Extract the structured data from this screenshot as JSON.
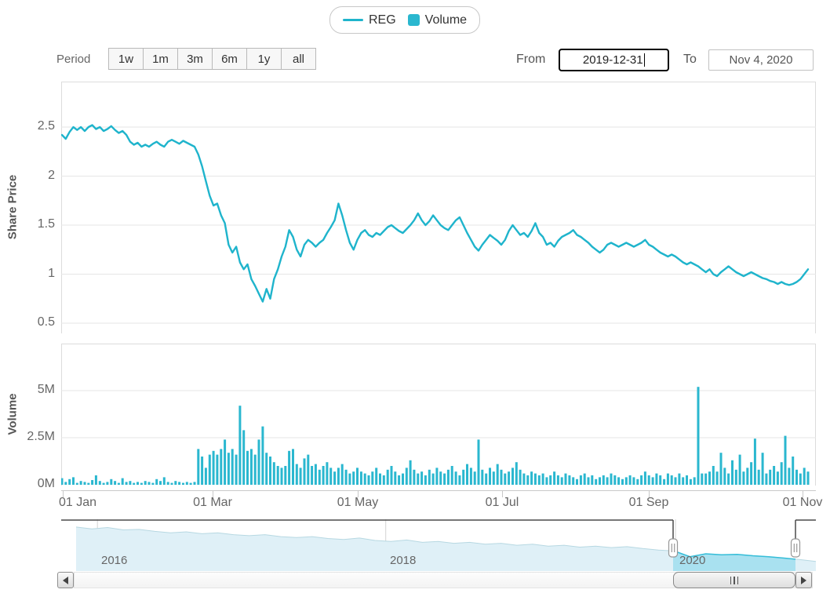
{
  "legend": {
    "items": [
      {
        "label": "REG",
        "marker": "line-icon"
      },
      {
        "label": "Volume",
        "marker": "square-icon"
      }
    ]
  },
  "toolbar": {
    "period_label": "Period",
    "buttons": [
      "1w",
      "1m",
      "3m",
      "6m",
      "1y",
      "all"
    ],
    "from_label": "From",
    "from_value": "2019-12-31",
    "to_label": "To",
    "to_value": "Nov 4, 2020"
  },
  "colors": {
    "series_line": "#1fb4cc",
    "volume_bar": "#2ab7cf",
    "grid": "#e6e6e6",
    "plot_border": "#dcdcdc",
    "axis_text": "#666666",
    "nav_area_fill": "#dff0f7",
    "nav_area_line": "#b7d8e2",
    "nav_selected_fill": "#a9e1f0",
    "nav_selected_line": "#35bdd8",
    "nav_outline": "#4a4a4a",
    "year_gridline": "#d4d4d4"
  },
  "chart_data": [
    {
      "type": "line",
      "name": "REG",
      "ylabel": "Share Price",
      "ylim": [
        0.4,
        2.96
      ],
      "grid": true,
      "yticks": [
        {
          "label": "2.5",
          "v": 2.5
        },
        {
          "label": "2",
          "v": 2.0
        },
        {
          "label": "1.5",
          "v": 1.5
        },
        {
          "label": "1",
          "v": 1.0
        },
        {
          "label": "0.5",
          "v": 0.5
        }
      ],
      "xticks": [
        {
          "label": "01 Jan",
          "f": 0.002,
          "lf": 0.022
        },
        {
          "label": "01 Mar",
          "f": 0.2006
        },
        {
          "label": "01 May",
          "f": 0.3929
        },
        {
          "label": "01 Jul",
          "f": 0.5842
        },
        {
          "label": "01 Sep",
          "f": 0.7786
        },
        {
          "label": "01 Nov",
          "f": 0.9823
        }
      ],
      "x_range": [
        "2019-12-31",
        "2020-11-04"
      ],
      "values": [
        2.42,
        2.38,
        2.45,
        2.5,
        2.47,
        2.5,
        2.46,
        2.5,
        2.52,
        2.48,
        2.5,
        2.46,
        2.48,
        2.51,
        2.47,
        2.44,
        2.46,
        2.42,
        2.35,
        2.32,
        2.34,
        2.3,
        2.32,
        2.3,
        2.33,
        2.35,
        2.32,
        2.3,
        2.35,
        2.37,
        2.35,
        2.33,
        2.36,
        2.34,
        2.32,
        2.3,
        2.22,
        2.1,
        1.95,
        1.8,
        1.7,
        1.72,
        1.6,
        1.52,
        1.3,
        1.22,
        1.28,
        1.12,
        1.05,
        1.1,
        0.95,
        0.88,
        0.8,
        0.72,
        0.85,
        0.75,
        0.95,
        1.05,
        1.18,
        1.28,
        1.45,
        1.38,
        1.25,
        1.18,
        1.3,
        1.35,
        1.32,
        1.28,
        1.32,
        1.35,
        1.42,
        1.48,
        1.55,
        1.72,
        1.6,
        1.45,
        1.32,
        1.25,
        1.35,
        1.42,
        1.45,
        1.4,
        1.38,
        1.42,
        1.4,
        1.44,
        1.48,
        1.5,
        1.47,
        1.44,
        1.42,
        1.46,
        1.5,
        1.55,
        1.62,
        1.55,
        1.5,
        1.54,
        1.6,
        1.55,
        1.5,
        1.47,
        1.45,
        1.5,
        1.55,
        1.58,
        1.5,
        1.42,
        1.35,
        1.28,
        1.24,
        1.3,
        1.35,
        1.4,
        1.37,
        1.34,
        1.3,
        1.35,
        1.44,
        1.5,
        1.45,
        1.4,
        1.42,
        1.38,
        1.44,
        1.52,
        1.42,
        1.38,
        1.3,
        1.32,
        1.28,
        1.34,
        1.38,
        1.4,
        1.42,
        1.45,
        1.4,
        1.38,
        1.35,
        1.32,
        1.28,
        1.25,
        1.22,
        1.25,
        1.3,
        1.32,
        1.3,
        1.28,
        1.3,
        1.32,
        1.3,
        1.28,
        1.3,
        1.32,
        1.35,
        1.3,
        1.28,
        1.25,
        1.22,
        1.2,
        1.18,
        1.2,
        1.18,
        1.15,
        1.12,
        1.1,
        1.12,
        1.1,
        1.08,
        1.05,
        1.02,
        1.05,
        1.0,
        0.98,
        1.02,
        1.05,
        1.08,
        1.05,
        1.02,
        1.0,
        0.98,
        1.0,
        1.02,
        1.0,
        0.98,
        0.96,
        0.95,
        0.93,
        0.92,
        0.9,
        0.92,
        0.9,
        0.89,
        0.9,
        0.92,
        0.95,
        1.0,
        1.05
      ]
    },
    {
      "type": "bar",
      "name": "Volume",
      "ylabel": "Volume",
      "unit": "M",
      "ylim": [
        0,
        7.5
      ],
      "grid": true,
      "yticks": [
        {
          "label": "5M",
          "v": 5
        },
        {
          "label": "2.5M",
          "v": 2.5
        },
        {
          "label": "0M",
          "v": 0
        }
      ],
      "values": [
        0.35,
        0.15,
        0.3,
        0.4,
        0.1,
        0.2,
        0.15,
        0.1,
        0.25,
        0.5,
        0.2,
        0.1,
        0.15,
        0.3,
        0.2,
        0.1,
        0.35,
        0.15,
        0.2,
        0.1,
        0.15,
        0.1,
        0.2,
        0.15,
        0.1,
        0.3,
        0.2,
        0.4,
        0.15,
        0.1,
        0.2,
        0.15,
        0.1,
        0.15,
        0.1,
        0.15,
        1.9,
        1.5,
        0.9,
        1.6,
        1.8,
        1.6,
        1.9,
        2.4,
        1.7,
        1.9,
        1.6,
        4.2,
        2.9,
        1.8,
        1.9,
        1.6,
        2.4,
        3.1,
        1.7,
        1.5,
        1.2,
        1.0,
        0.9,
        1.0,
        1.8,
        1.9,
        1.1,
        0.9,
        1.4,
        1.6,
        1.0,
        1.1,
        0.8,
        1.0,
        1.2,
        0.9,
        0.7,
        0.9,
        1.1,
        0.8,
        0.6,
        0.7,
        0.9,
        0.7,
        0.6,
        0.5,
        0.7,
        0.9,
        0.6,
        0.5,
        0.8,
        1.0,
        0.7,
        0.5,
        0.6,
        0.9,
        1.3,
        0.8,
        0.6,
        0.7,
        0.5,
        0.8,
        0.6,
        0.9,
        0.7,
        0.6,
        0.8,
        1.0,
        0.7,
        0.5,
        0.8,
        1.1,
        0.9,
        0.7,
        2.4,
        0.8,
        0.6,
        0.9,
        0.7,
        1.1,
        0.8,
        0.6,
        0.7,
        0.9,
        1.2,
        0.8,
        0.6,
        0.5,
        0.7,
        0.6,
        0.5,
        0.6,
        0.4,
        0.5,
        0.7,
        0.5,
        0.4,
        0.6,
        0.5,
        0.4,
        0.3,
        0.5,
        0.6,
        0.4,
        0.5,
        0.3,
        0.4,
        0.5,
        0.4,
        0.6,
        0.5,
        0.4,
        0.3,
        0.4,
        0.5,
        0.4,
        0.3,
        0.5,
        0.7,
        0.5,
        0.4,
        0.6,
        0.5,
        0.3,
        0.6,
        0.5,
        0.4,
        0.6,
        0.4,
        0.5,
        0.3,
        0.4,
        5.2,
        0.6,
        0.6,
        0.7,
        1.0,
        0.7,
        1.7,
        0.9,
        0.6,
        1.3,
        0.8,
        1.6,
        0.7,
        0.9,
        1.2,
        2.45,
        0.8,
        1.7,
        0.6,
        0.8,
        1.0,
        0.7,
        1.2,
        2.6,
        0.9,
        1.5,
        0.8,
        0.6,
        0.9,
        0.7
      ]
    },
    {
      "type": "area",
      "name": "navigator",
      "years": [
        {
          "label": "2016",
          "f": 0.048
        },
        {
          "label": "2018",
          "f": 0.43
        },
        {
          "label": "2020",
          "f": 0.814
        }
      ],
      "selection": [
        0.8108,
        0.973
      ],
      "data_start_f": 0.0198,
      "values": [
        0.92,
        0.88,
        0.91,
        0.86,
        0.87,
        0.83,
        0.8,
        0.82,
        0.78,
        0.8,
        0.76,
        0.74,
        0.76,
        0.72,
        0.7,
        0.72,
        0.68,
        0.66,
        0.69,
        0.64,
        0.62,
        0.65,
        0.6,
        0.62,
        0.58,
        0.6,
        0.56,
        0.58,
        0.54,
        0.56,
        0.52,
        0.54,
        0.5,
        0.52,
        0.49,
        0.51,
        0.47,
        0.44,
        0.42,
        0.3,
        0.36,
        0.34,
        0.35,
        0.32,
        0.3,
        0.27,
        0.24,
        0.2
      ]
    }
  ]
}
